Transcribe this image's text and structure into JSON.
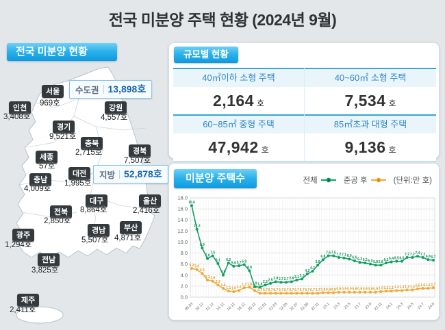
{
  "title": "전국 미분양 주택 현황  (2024년 9월)",
  "map_panel": {
    "header": "전국 미분양 현황",
    "summary": [
      {
        "label": "수도권",
        "value": "13,898호"
      },
      {
        "label": "지방",
        "value": "52,878호"
      }
    ],
    "regions": [
      {
        "name": "서울",
        "value": "969호"
      },
      {
        "name": "인천",
        "value": "3,408호"
      },
      {
        "name": "경기",
        "value": "9,521호"
      },
      {
        "name": "강원",
        "value": "4,557호"
      },
      {
        "name": "충북",
        "value": "2,715호"
      },
      {
        "name": "경북",
        "value": "7,507호"
      },
      {
        "name": "세종",
        "value": "57호"
      },
      {
        "name": "대전",
        "value": "1,995호"
      },
      {
        "name": "충남",
        "value": "4,009호"
      },
      {
        "name": "대구",
        "value": "8,864호"
      },
      {
        "name": "울산",
        "value": "2,416호"
      },
      {
        "name": "전북",
        "value": "2,850호"
      },
      {
        "name": "경남",
        "value": "5,507호"
      },
      {
        "name": "부산",
        "value": "4,871호"
      },
      {
        "name": "광주",
        "value": "1,294호"
      },
      {
        "name": "전남",
        "value": "3,825호"
      },
      {
        "name": "제주",
        "value": "2,411호"
      }
    ]
  },
  "size_panel": {
    "header": "규모별 현황",
    "cells": [
      {
        "label": "40㎡이하 소형 주택",
        "value": "2,164",
        "unit": "호"
      },
      {
        "label": "40~60㎡ 소형 주택",
        "value": "7,534",
        "unit": "호"
      },
      {
        "label": "60~85㎡ 중형 주택",
        "value": "47,942",
        "unit": "호"
      },
      {
        "label": "85㎡초과 대형 주택",
        "value": "9,136",
        "unit": "호"
      }
    ]
  },
  "chart_panel": {
    "header": "미분양 주택수",
    "unit_note": "(단위:만 호)"
  },
  "chart_data": {
    "type": "line",
    "title": "미분양 주택수",
    "unit": "만 호",
    "ylabel": "",
    "xlabel": "",
    "ylim": [
      0,
      18
    ],
    "yticks": [
      0.0,
      2.0,
      4.0,
      6.0,
      8.0,
      10.0,
      12.0,
      14.0,
      16.0,
      18.0
    ],
    "grid": true,
    "legend_position": "top-right",
    "x": [
      "09.03",
      "09.12",
      "10.12",
      "11.12",
      "12.12",
      "13.12",
      "14.12",
      "15.12",
      "16.12",
      "17.12",
      "18.12",
      "19.12",
      "20.12",
      "21.12",
      "22.01",
      "22.02",
      "22.03",
      "22.04",
      "22.05",
      "22.06",
      "22.07",
      "22.08",
      "22.09",
      "22.10",
      "22.11",
      "22.12",
      "23.1",
      "23.2",
      "23.3",
      "23.4",
      "23.5",
      "23.6",
      "23.7",
      "23.8",
      "23.9",
      "23.10",
      "23.11",
      "23.12",
      "24.1",
      "24.2",
      "24.3",
      "24.4",
      "24.5",
      "24.6",
      "24.7",
      "24.8",
      "24.9"
    ],
    "x_tick_shown": [
      "09.03",
      "10.12",
      "12.12",
      "14.12",
      "16.12",
      "18.12",
      "20.12",
      "22.01",
      "22.03",
      "22.05",
      "22.07",
      "22.09",
      "22.11",
      "23.1",
      "23.3",
      "23.5",
      "23.7",
      "23.9",
      "23.11",
      "24.1",
      "24.3",
      "24.5",
      "24.7",
      "24.9"
    ],
    "series": [
      {
        "name": "전체",
        "color": "#0f9f60",
        "label_color": "#0c8f55",
        "values": [
          16.6,
          12.3,
          8.9,
          7.0,
          7.5,
          6.1,
          4.0,
          6.2,
          5.6,
          5.7,
          5.9,
          4.8,
          1.9,
          1.8,
          2.2,
          2.5,
          2.8,
          2.7,
          2.7,
          2.8,
          3.1,
          3.3,
          4.2,
          4.7,
          5.8,
          6.8,
          7.5,
          7.5,
          7.2,
          7.1,
          6.9,
          6.6,
          6.3,
          6.2,
          6.0,
          5.8,
          5.8,
          6.2,
          6.4,
          6.5,
          6.5,
          7.2,
          7.2,
          7.4,
          7.2,
          6.8,
          6.7
        ]
      },
      {
        "name": "준공 후",
        "color": "#f0a735",
        "label_color": "#dd991e",
        "values": [
          5.2,
          5.0,
          4.3,
          3.1,
          2.9,
          2.2,
          1.6,
          1.1,
          1.0,
          1.2,
          1.7,
          1.8,
          1.2,
          0.7,
          0.7,
          0.7,
          0.7,
          0.7,
          0.7,
          0.7,
          0.7,
          0.7,
          0.7,
          0.7,
          0.7,
          0.8,
          0.8,
          0.8,
          0.9,
          0.9,
          0.9,
          0.9,
          0.9,
          0.9,
          0.9,
          0.9,
          1.0,
          1.1,
          1.1,
          1.2,
          1.2,
          1.3,
          1.3,
          1.5,
          1.6,
          1.6,
          1.7
        ]
      }
    ]
  },
  "colors": {
    "background": "#e3e7ea",
    "header_gradient_top": "#6fd0f5",
    "header_gradient_bottom": "#0f99de",
    "table_header_text": "#2f88c6",
    "table_rule": "#35a3dc",
    "region_badge_bg": "#34393e",
    "total_number_blue": "#1566a9",
    "series_total_green": "#0f9f60",
    "series_completed_orange": "#f0a735"
  }
}
